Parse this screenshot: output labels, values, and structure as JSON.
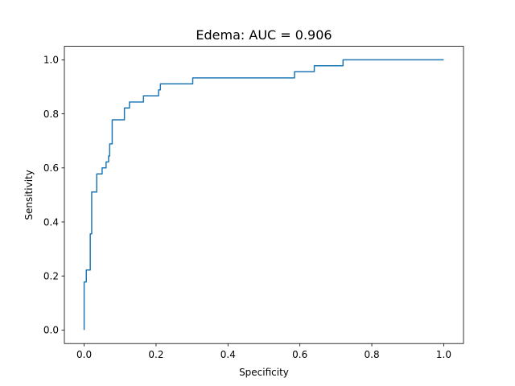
{
  "chart_data": {
    "type": "line",
    "title": "Edema: AUC = 0.906",
    "xlabel": "Specificity",
    "ylabel": "Sensitivity",
    "xlim": [
      -0.055,
      1.055
    ],
    "ylim": [
      -0.05,
      1.05
    ],
    "x_ticks": [
      0.0,
      0.2,
      0.4,
      0.6,
      0.8,
      1.0
    ],
    "x_tick_labels": [
      "0.0",
      "0.2",
      "0.4",
      "0.6",
      "0.8",
      "1.0"
    ],
    "y_ticks": [
      0.0,
      0.2,
      0.4,
      0.6,
      0.8,
      1.0
    ],
    "y_tick_labels": [
      "0.0",
      "0.2",
      "0.4",
      "0.6",
      "0.8",
      "1.0"
    ],
    "grid": false,
    "legend": "none",
    "series": [
      {
        "color": "#1f77b4",
        "x": [
          0.0,
          0.0,
          0.006,
          0.006,
          0.017,
          0.017,
          0.021,
          0.021,
          0.035,
          0.035,
          0.05,
          0.05,
          0.061,
          0.061,
          0.068,
          0.068,
          0.071,
          0.071,
          0.078,
          0.078,
          0.084,
          0.084,
          0.112,
          0.112,
          0.126,
          0.126,
          0.165,
          0.165,
          0.207,
          0.207,
          0.212,
          0.212,
          0.302,
          0.302,
          0.585,
          0.585,
          0.64,
          0.64,
          0.72,
          0.72,
          1.0
        ],
        "y": [
          0.0,
          0.178,
          0.178,
          0.222,
          0.222,
          0.356,
          0.356,
          0.511,
          0.511,
          0.578,
          0.578,
          0.6,
          0.6,
          0.622,
          0.622,
          0.644,
          0.644,
          0.689,
          0.689,
          0.778,
          0.778,
          0.778,
          0.778,
          0.822,
          0.822,
          0.844,
          0.844,
          0.867,
          0.867,
          0.889,
          0.889,
          0.911,
          0.911,
          0.933,
          0.933,
          0.956,
          0.956,
          0.978,
          0.978,
          1.0,
          1.0
        ]
      }
    ]
  }
}
